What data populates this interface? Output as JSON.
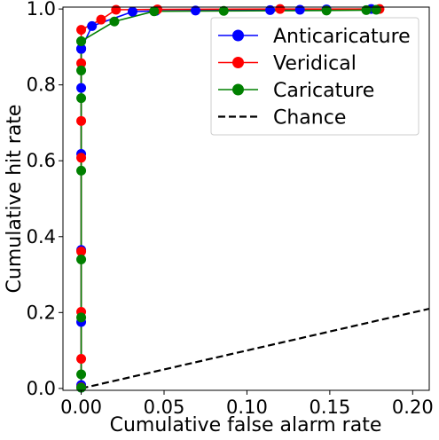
{
  "chart_data": {
    "type": "line",
    "xlabel": "Cumulative false alarm rate",
    "ylabel": "Cumulative hit rate",
    "xlim": [
      -0.011,
      0.21
    ],
    "ylim": [
      -0.005,
      1.005
    ],
    "x_ticks": [
      0.0,
      0.05,
      0.1,
      0.15,
      0.2
    ],
    "x_tick_labels": [
      "0.00",
      "0.05",
      "0.10",
      "0.15",
      "0.20"
    ],
    "y_ticks": [
      0.0,
      0.2,
      0.4,
      0.6,
      0.8,
      1.0
    ],
    "y_tick_labels": [
      "0.0",
      "0.2",
      "0.4",
      "0.6",
      "0.8",
      "1.0"
    ],
    "grid": false,
    "legend_position": "top-right",
    "series": [
      {
        "name": "Anticaricature",
        "color": "#0000ff",
        "marker": "circle",
        "x": [
          0,
          0,
          0,
          0,
          0,
          0,
          0,
          0,
          0,
          0.0065,
          0.031,
          0.045,
          0.069,
          0.114,
          0.132,
          0.148,
          0.175
        ],
        "y": [
          0.002,
          0.009,
          0.175,
          0.365,
          0.618,
          0.792,
          0.895,
          0.895,
          0.895,
          0.955,
          0.993,
          0.995,
          0.996,
          0.997,
          0.998,
          0.999,
          1.0
        ]
      },
      {
        "name": "Veridical",
        "color": "#ff0000",
        "marker": "circle",
        "x": [
          0,
          0,
          0,
          0,
          0,
          0,
          0,
          0,
          0.012,
          0.021,
          0.046,
          0.12,
          0.18
        ],
        "y": [
          0.003,
          0.078,
          0.202,
          0.361,
          0.608,
          0.705,
          0.857,
          0.945,
          0.972,
          0.998,
          0.999,
          1.0,
          1.0
        ]
      },
      {
        "name": "Caricature",
        "color": "#008000",
        "marker": "circle",
        "x": [
          0,
          0,
          0,
          0,
          0,
          0,
          0,
          0,
          0,
          0.02,
          0.044,
          0.086,
          0.148,
          0.172,
          0.178
        ],
        "y": [
          0.002,
          0.037,
          0.187,
          0.34,
          0.574,
          0.765,
          0.838,
          0.915,
          0.915,
          0.967,
          0.994,
          0.995,
          0.996,
          0.997,
          0.998
        ]
      },
      {
        "name": "Chance",
        "color": "#000000",
        "style": "dashed",
        "x": [
          0.0,
          0.21
        ],
        "y": [
          0.0,
          0.21
        ]
      }
    ]
  }
}
